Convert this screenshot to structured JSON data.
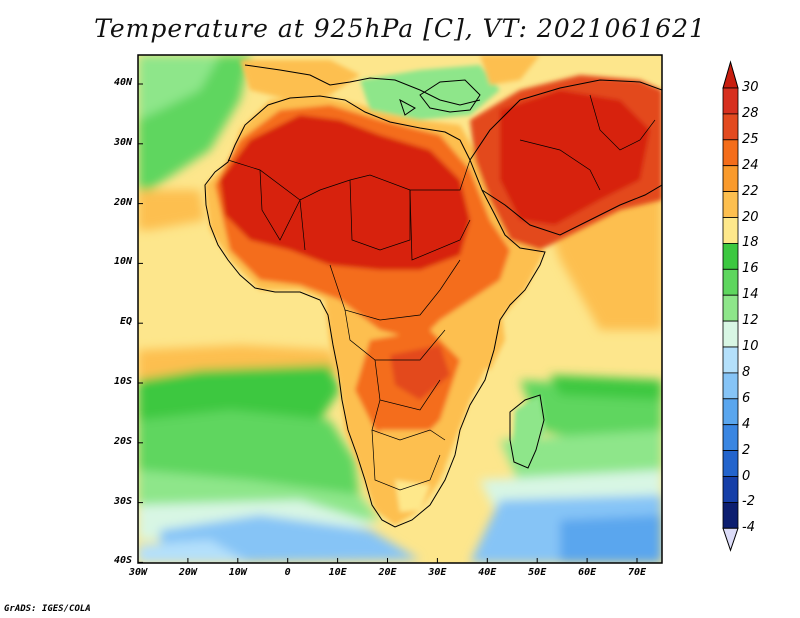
{
  "title": "Temperature at 925hPa [C], VT: 2021061621",
  "credit": "GrADS: IGES/COLA",
  "lat_ticks": [
    "40N",
    "30N",
    "20N",
    "10N",
    "EQ",
    "10S",
    "20S",
    "30S",
    "40S"
  ],
  "lon_ticks": [
    "30W",
    "20W",
    "10W",
    "0",
    "10E",
    "20E",
    "30E",
    "40E",
    "50E",
    "60E",
    "70E"
  ],
  "colorbar": {
    "levels": [
      "30",
      "28",
      "25",
      "24",
      "22",
      "20",
      "18",
      "16",
      "14",
      "12",
      "10",
      "8",
      "6",
      "4",
      "2",
      "0",
      "-2",
      "-4"
    ],
    "colors": [
      "#d7301f",
      "#e34a1f",
      "#f46d1a",
      "#f99a2c",
      "#fdbf4f",
      "#fee88b",
      "#3cc840",
      "#5ed65e",
      "#8ee68a",
      "#d8f6e4",
      "#b4e0fb",
      "#86c4f6",
      "#5aa6ee",
      "#3a86e2",
      "#2364cc",
      "#163fa8",
      "#0c1e70"
    ]
  },
  "legend_colors": {
    "ocean_warm": "#fde68c",
    "sahara": "#d7230f",
    "land_hot": "#f46d1a",
    "southern_cool": "#8ee68a"
  }
}
